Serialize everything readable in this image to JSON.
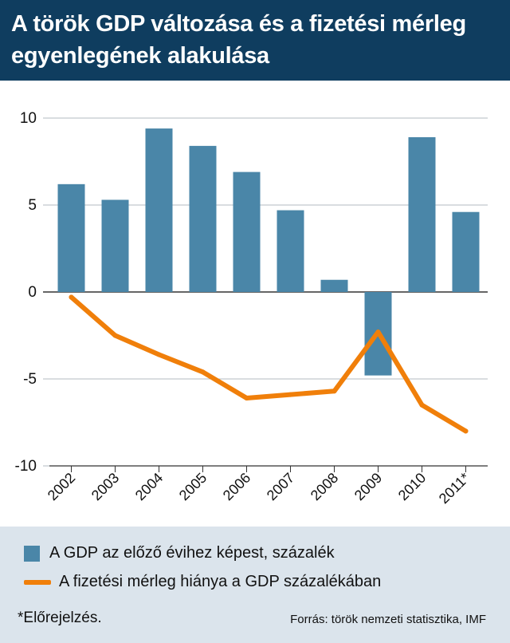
{
  "title": "A török GDP változása és a fizetési mérleg egyenlegének alakulása",
  "colors": {
    "header": "#0f3d5f",
    "bar": "#4a86a8",
    "line": "#f07f0a",
    "legend_bg": "#dbe4ec"
  },
  "legend": {
    "bar_label": "A GDP az előző évihez képest, százalék",
    "line_label": "A fizetési mérleg hiánya a GDP százalékában"
  },
  "footnote": "*Előrejelzés.",
  "source": "Forrás: török nemzeti statisztika, IMF",
  "chart_data": {
    "type": "bar",
    "categories": [
      "2002",
      "2003",
      "2004",
      "2005",
      "2006",
      "2007",
      "2008",
      "2009",
      "2010",
      "2011*"
    ],
    "ylim": [
      -10,
      10
    ],
    "yticks": [
      10,
      5,
      0,
      -5,
      -10
    ],
    "grid": true,
    "series": [
      {
        "name": "A GDP az előző évihez képest, százalék",
        "type": "bar",
        "values": [
          6.2,
          5.3,
          9.4,
          8.4,
          6.9,
          4.7,
          0.7,
          -4.8,
          8.9,
          4.6
        ]
      },
      {
        "name": "A fizetési mérleg hiánya a GDP százalékában",
        "type": "line",
        "values": [
          -0.3,
          -2.5,
          -3.6,
          -4.6,
          -6.1,
          -5.9,
          -5.7,
          -2.3,
          -6.5,
          -8.0
        ]
      }
    ]
  }
}
